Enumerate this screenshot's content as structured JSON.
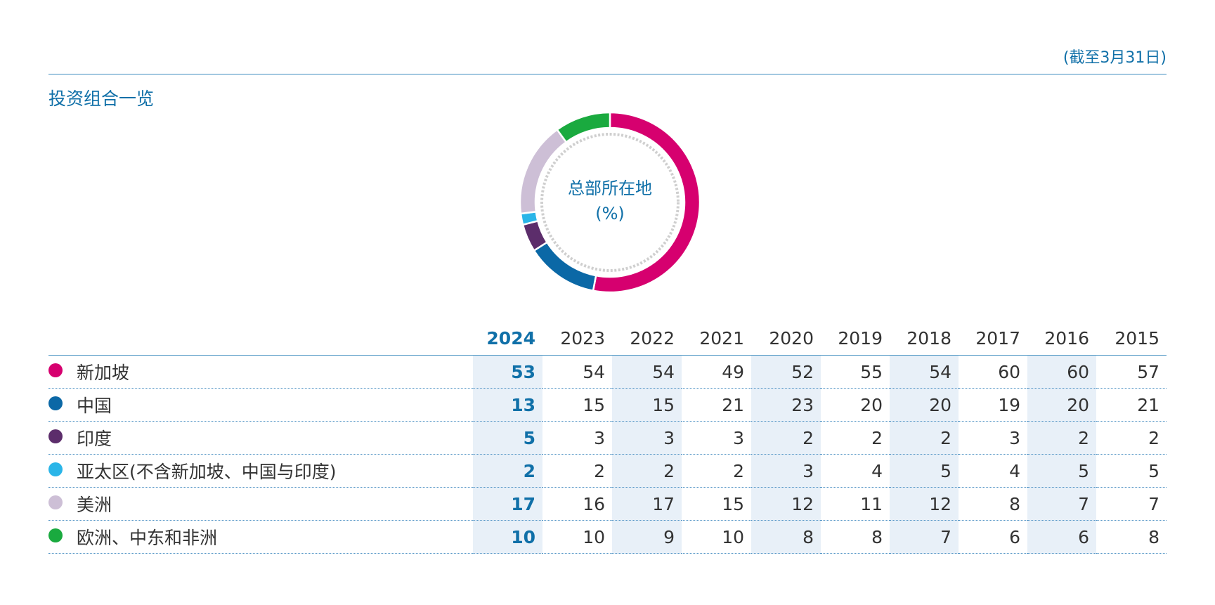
{
  "note": "(截至3月31日)",
  "title": "投资组合一览",
  "donut_label": [
    "总部所在地",
    "(%)"
  ],
  "years": [
    "2024",
    "2023",
    "2022",
    "2021",
    "2020",
    "2019",
    "2018",
    "2017",
    "2016",
    "2015"
  ],
  "rows": [
    {
      "name": "新加坡",
      "color": "#d6006f",
      "values": [
        "53",
        "54",
        "54",
        "49",
        "52",
        "55",
        "54",
        "60",
        "60",
        "57"
      ]
    },
    {
      "name": "中国",
      "color": "#0b68a6",
      "values": [
        "13",
        "15",
        "15",
        "21",
        "23",
        "20",
        "20",
        "19",
        "20",
        "21"
      ]
    },
    {
      "name": "印度",
      "color": "#5c2d6b",
      "values": [
        "5",
        "3",
        "3",
        "3",
        "2",
        "2",
        "2",
        "3",
        "2",
        "2"
      ]
    },
    {
      "name": "亚太区(不含新加坡、中国与印度)",
      "color": "#2ab5e8",
      "values": [
        "2",
        "2",
        "2",
        "2",
        "3",
        "4",
        "5",
        "4",
        "5",
        "5"
      ]
    },
    {
      "name": "美洲",
      "color": "#cdbfd6",
      "values": [
        "17",
        "16",
        "17",
        "15",
        "12",
        "11",
        "12",
        "8",
        "7",
        "7"
      ]
    },
    {
      "name": "欧洲、中东和非洲",
      "color": "#1aaa3f",
      "values": [
        "10",
        "10",
        "9",
        "10",
        "8",
        "8",
        "7",
        "6",
        "6",
        "8"
      ]
    }
  ],
  "chart_data": {
    "type": "pie",
    "title": "总部所在地 (%)",
    "categories": [
      "新加坡",
      "中国",
      "印度",
      "亚太区(不含新加坡、中国与印度)",
      "美洲",
      "欧洲、中东和非洲"
    ],
    "values": [
      53,
      13,
      5,
      2,
      17,
      10
    ],
    "colors": [
      "#d6006f",
      "#0b68a6",
      "#5c2d6b",
      "#2ab5e8",
      "#cdbfd6",
      "#1aaa3f"
    ]
  }
}
